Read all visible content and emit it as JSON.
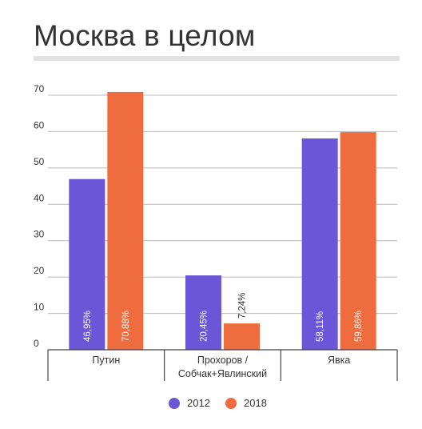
{
  "colors": {
    "s2012": "#6b56d8",
    "s2018": "#ef6c3f",
    "grid": "#b9b9b9",
    "text": "#333333",
    "axis": "#444444"
  },
  "chart_data": {
    "type": "bar",
    "title": "Москва в целом",
    "categories": [
      "Путин",
      [
        "Прохоров /",
        "Собчак+Явлинский"
      ],
      "Явка"
    ],
    "series": [
      {
        "name": "2012",
        "values": [
          46.95,
          20.45,
          58.11
        ],
        "labels": [
          "46,95%",
          "20,45%",
          "58,11%"
        ]
      },
      {
        "name": "2018",
        "values": [
          70.88,
          7.24,
          59.86
        ],
        "labels": [
          "70,88%",
          "7,24%",
          "59,86%"
        ]
      }
    ],
    "ylim": [
      0,
      70
    ],
    "yticks": [
      0,
      10,
      20,
      30,
      40,
      50,
      60,
      70
    ],
    "grid": true,
    "legend": "bottom-center"
  }
}
